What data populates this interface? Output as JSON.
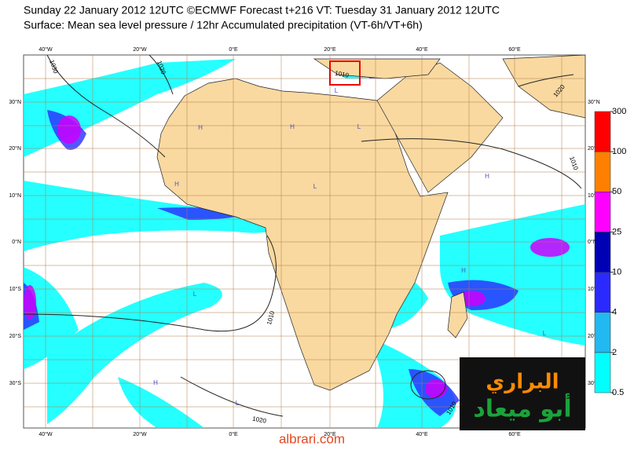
{
  "header": {
    "line1": "Sunday 22 January 2012 12UTC ©ECMWF Forecast t+216 VT: Tuesday 31 January 2012 12UTC",
    "line2": "Surface: Mean sea level pressure / 12hr Accumulated precipitation (VT-6h/VT+6h)"
  },
  "map": {
    "lon_labels": [
      "40°W",
      "20°W",
      "0°E",
      "20°E",
      "40°E",
      "60°E"
    ],
    "lat_labels": [
      "30°N",
      "20°N",
      "10°N",
      "0°N",
      "10°S",
      "20°S",
      "30°S"
    ],
    "isobar_labels": [
      "1030",
      "1020",
      "1010",
      "1010",
      "1010",
      "1020",
      "1010",
      "1020"
    ],
    "pressure_centers": [
      "H",
      "H",
      "H",
      "L",
      "L",
      "H",
      "L",
      "L",
      "H",
      "L",
      "H",
      "L"
    ]
  },
  "legend": {
    "levels": [
      0.5,
      2,
      4,
      10,
      25,
      50,
      100,
      300
    ],
    "colors": [
      "#00ffff",
      "#22b8f0",
      "#2a2aff",
      "#0000b4",
      "#ff00ff",
      "#ff8000",
      "#ff0000"
    ]
  },
  "logo": {
    "line1": "البراري",
    "line2": "أبو ميعاد"
  },
  "watermark": "albrari.com"
}
